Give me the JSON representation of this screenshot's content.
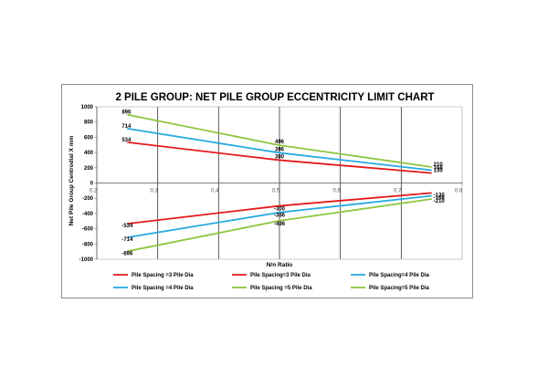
{
  "chart_data": {
    "type": "line",
    "title": "2 PILE GROUP: NET PILE GROUP ECCENTRICITY LIMIT CHART",
    "xlabel": "N/n Ratio",
    "ylabel": "Net Pile Group Centrodial X mm",
    "xlim": [
      0.2,
      0.8
    ],
    "ylim": [
      -1000,
      1000
    ],
    "xticks": [
      "0.2",
      "0.3",
      "0.4",
      "0.5",
      "0.6",
      "0.7",
      "0.8"
    ],
    "yticks": [
      "1000",
      "800",
      "600",
      "400",
      "200",
      "0",
      "-200",
      "-400",
      "-600",
      "-800",
      "-1000"
    ],
    "grid": "vertical major lines",
    "legend_position": "bottom",
    "series": [
      {
        "name": "Pile Spacing =3 Pile Dia",
        "color": "#e31a1c",
        "x": [
          0.25,
          0.5,
          0.75
        ],
        "y": [
          534,
          300,
          130
        ]
      },
      {
        "name": "Pile Spacing=3 Pile Dia",
        "color": "#e31a1c",
        "x": [
          0.25,
          0.5,
          0.75
        ],
        "y": [
          -534,
          -300,
          -130
        ]
      },
      {
        "name": "Pile Spacing=4 Pile Dia",
        "color": "#27aae1",
        "x": [
          0.25,
          0.5,
          0.75
        ],
        "y": [
          714,
          396,
          168
        ]
      },
      {
        "name": "Pile Spacing =4 Pile Dia",
        "color": "#27aae1",
        "x": [
          0.25,
          0.5,
          0.75
        ],
        "y": [
          -714,
          -386,
          -168
        ]
      },
      {
        "name": "Pile Spacing =5 Pile Dia",
        "color": "#8dc63f",
        "x": [
          0.25,
          0.5,
          0.75
        ],
        "y": [
          896,
          496,
          210
        ]
      },
      {
        "name": "Pile Spacing=5 Pile Dia",
        "color": "#8dc63f",
        "x": [
          0.25,
          0.5,
          0.75
        ],
        "y": [
          -896,
          -496,
          -210
        ]
      }
    ],
    "data_labels": [
      {
        "x": 0.25,
        "y": 896,
        "text": "896"
      },
      {
        "x": 0.25,
        "y": 714,
        "text": "714"
      },
      {
        "x": 0.25,
        "y": 534,
        "text": "534"
      },
      {
        "x": 0.5,
        "y": 496,
        "text": "496"
      },
      {
        "x": 0.5,
        "y": 396,
        "text": "396"
      },
      {
        "x": 0.5,
        "y": 300,
        "text": "300"
      },
      {
        "x": 0.75,
        "y": 210,
        "text": "210"
      },
      {
        "x": 0.75,
        "y": 168,
        "text": "168"
      },
      {
        "x": 0.75,
        "y": 130,
        "text": "130"
      },
      {
        "x": 0.75,
        "y": -130,
        "text": "-130"
      },
      {
        "x": 0.75,
        "y": -168,
        "text": "-168"
      },
      {
        "x": 0.75,
        "y": -210,
        "text": "-210"
      },
      {
        "x": 0.5,
        "y": -300,
        "text": "-300"
      },
      {
        "x": 0.5,
        "y": -386,
        "text": "-386"
      },
      {
        "x": 0.5,
        "y": -496,
        "text": "-496"
      },
      {
        "x": 0.25,
        "y": -534,
        "text": "-534"
      },
      {
        "x": 0.25,
        "y": -714,
        "text": "-714"
      },
      {
        "x": 0.25,
        "y": -896,
        "text": "-896"
      }
    ]
  }
}
